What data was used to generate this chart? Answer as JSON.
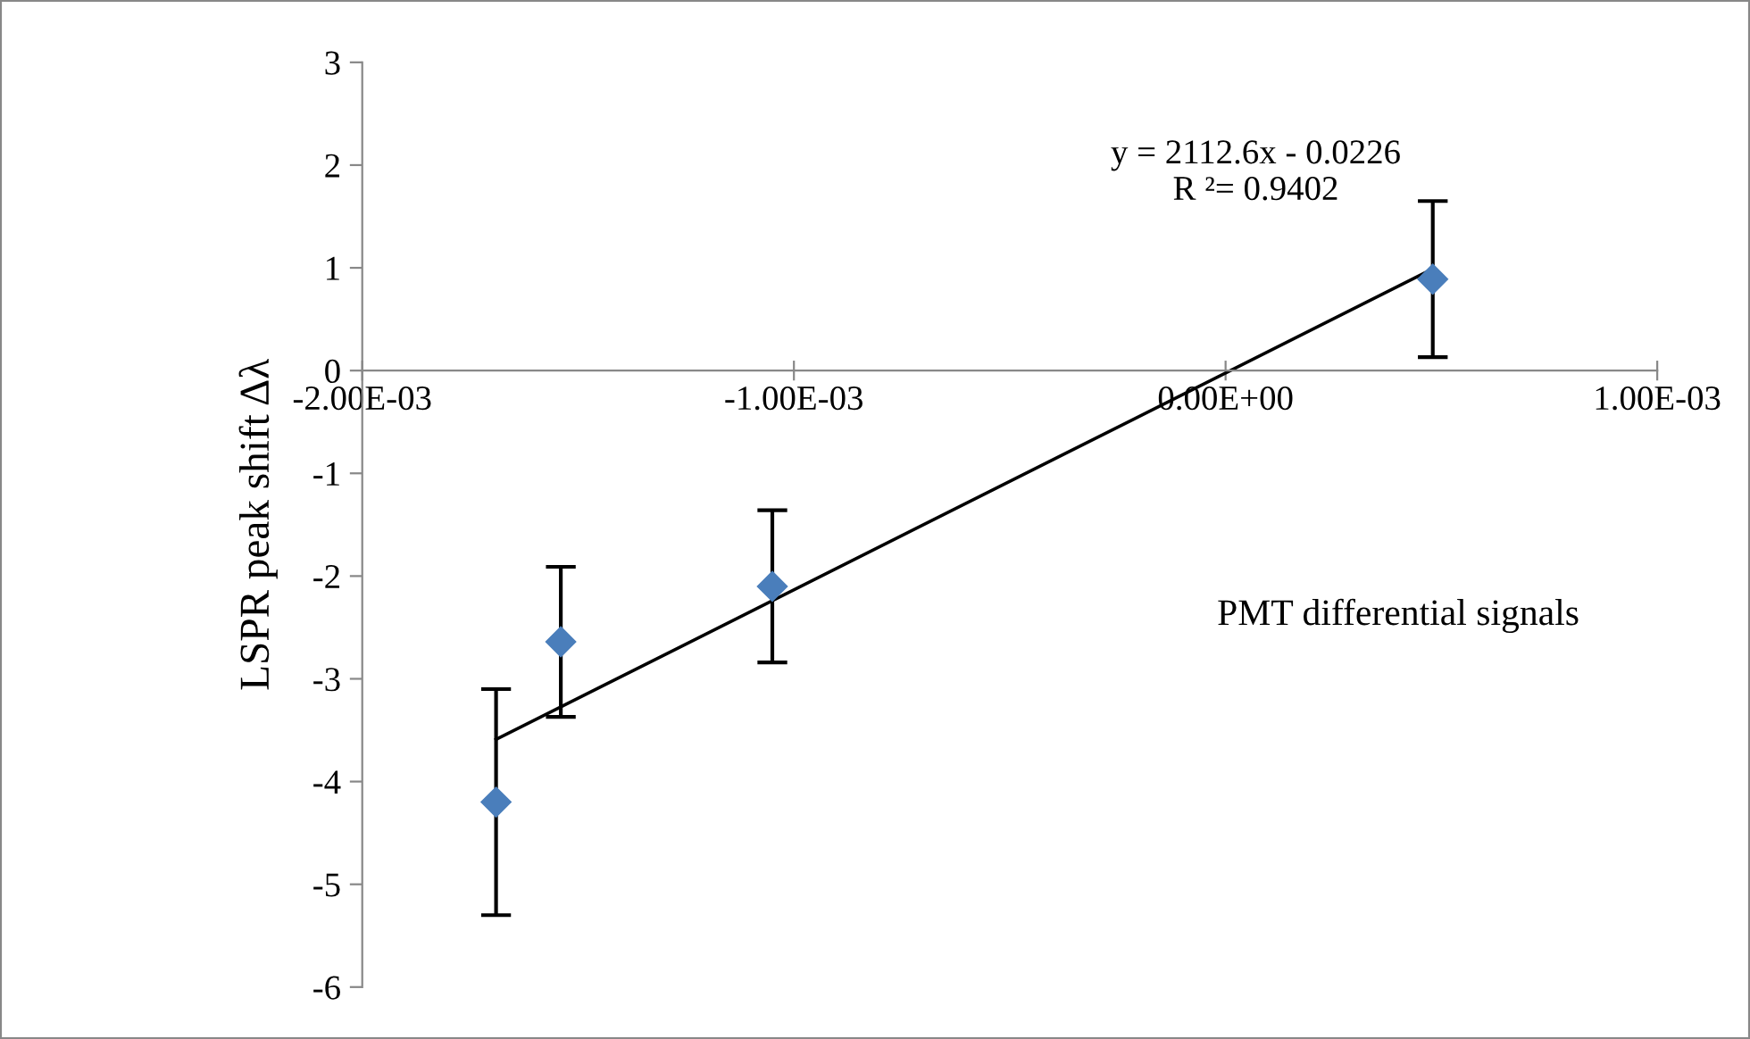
{
  "chart_data": {
    "type": "scatter",
    "ylabel": "LSPR peak shift Δλ",
    "xlabel": "PMT differential signals",
    "annotations": [
      "y = 2112.6x - 0.0226\nR ²= 0.9402"
    ],
    "series": [
      {
        "color": "#4a7ebb",
        "x": [
          -0.00169,
          -0.00154,
          -0.00105,
          0.00048
        ],
        "values": [
          -4.2,
          -2.64,
          -2.1,
          0.89
        ],
        "errors": [
          1.1,
          0.73,
          0.74,
          0.76
        ],
        "marker": "diamond"
      },
      {
        "type": "line",
        "color": "#000000",
        "x": [
          -0.00169,
          0.00048
        ],
        "values": [
          -3.59,
          0.99
        ],
        "marker": "none"
      }
    ],
    "xlim": [
      -0.002,
      0.001
    ],
    "xticks": [
      {
        "value": -0.002,
        "label": "-2.00E-03"
      },
      {
        "value": -0.001,
        "label": "-1.00E-03"
      },
      {
        "value": 0,
        "label": "0.00E+00"
      },
      {
        "value": 0.001,
        "label": "1.00E-03"
      }
    ],
    "ylim": [
      -6,
      3
    ],
    "yticks": [
      -6,
      -5,
      -4,
      -3,
      -2,
      -1,
      0,
      1,
      2,
      3
    ],
    "grid": false,
    "legend": false
  }
}
